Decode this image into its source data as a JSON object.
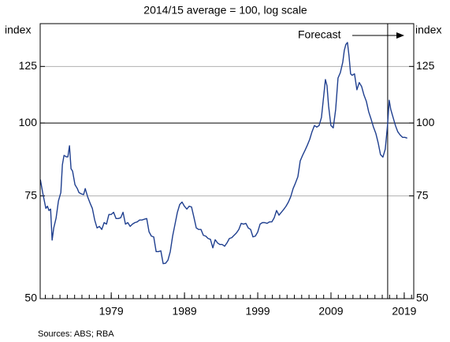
{
  "chart_data": {
    "type": "line",
    "subtitle": "2014/15 average = 100, log scale",
    "y_label": "index",
    "source": "Sources: ABS; RBA",
    "annotation": "Forecast",
    "forecast_start": 2016.74,
    "log_scale": true,
    "xlim": [
      1969.3,
      2020.3
    ],
    "ylim": [
      50,
      148
    ],
    "xticks": [
      1979,
      1989,
      1999,
      2009,
      2019
    ],
    "yticks": [
      50,
      75,
      100,
      125
    ],
    "reference_line": 100,
    "grid": true,
    "series": [
      {
        "name": "index",
        "color": "#1f3f8f",
        "x": [
          1969.32,
          1969.64,
          1970.07,
          1970.29,
          1970.5,
          1970.72,
          1970.93,
          1971.15,
          1971.47,
          1971.79,
          1972.12,
          1972.33,
          1972.55,
          1972.87,
          1973.08,
          1973.3,
          1973.51,
          1973.72,
          1974.05,
          1974.37,
          1974.59,
          1974.91,
          1975.23,
          1975.45,
          1975.77,
          1976.09,
          1976.42,
          1976.74,
          1977.06,
          1977.38,
          1977.71,
          1978.03,
          1978.35,
          1978.68,
          1979.0,
          1979.32,
          1979.65,
          1979.97,
          1980.29,
          1980.61,
          1980.94,
          1981.26,
          1981.58,
          1981.9,
          1982.23,
          1982.55,
          1982.87,
          1983.19,
          1983.52,
          1983.84,
          1984.16,
          1984.48,
          1984.8,
          1985.13,
          1985.45,
          1985.77,
          1986.09,
          1986.42,
          1986.74,
          1987.06,
          1987.38,
          1987.71,
          1988.03,
          1988.35,
          1988.67,
          1988.99,
          1989.32,
          1989.64,
          1989.96,
          1990.28,
          1990.61,
          1990.93,
          1991.25,
          1991.58,
          1991.9,
          1992.22,
          1992.54,
          1992.87,
          1993.19,
          1993.51,
          1993.84,
          1994.16,
          1994.48,
          1994.8,
          1995.13,
          1995.45,
          1995.77,
          1996.09,
          1996.42,
          1996.74,
          1997.06,
          1997.38,
          1997.7,
          1998.03,
          1998.35,
          1998.67,
          1998.99,
          1999.32,
          1999.64,
          1999.96,
          2000.28,
          2000.61,
          2000.93,
          2001.25,
          2001.57,
          2001.9,
          2002.22,
          2002.54,
          2002.86,
          2003.19,
          2003.51,
          2003.83,
          2004.15,
          2004.48,
          2004.8,
          2005.12,
          2005.44,
          2005.77,
          2006.09,
          2006.41,
          2006.74,
          2007.06,
          2007.38,
          2007.7,
          2008.03,
          2008.24,
          2008.46,
          2008.67,
          2008.99,
          2009.31,
          2009.64,
          2009.96,
          2010.28,
          2010.61,
          2010.82,
          2011.03,
          2011.25,
          2011.46,
          2011.68,
          2011.89,
          2012.21,
          2012.54,
          2012.86,
          2013.18,
          2013.51,
          2013.83,
          2014.15,
          2014.47,
          2014.8,
          2015.12,
          2015.44,
          2015.76,
          2016.09,
          2016.41,
          2016.73,
          2016.95,
          2017.16,
          2017.48,
          2017.8,
          2018.12,
          2018.44,
          2018.77,
          2019.09,
          2019.41
        ],
        "values": [
          80,
          76,
          71.4,
          72,
          70.8,
          71.2,
          63,
          66.1,
          68.7,
          73.5,
          76,
          84.8,
          88,
          87.5,
          87.5,
          91.4,
          83.5,
          82.7,
          78.4,
          77.2,
          76,
          75.6,
          75.4,
          77.2,
          74.8,
          73,
          71.4,
          68.2,
          66.1,
          66.5,
          65.7,
          67.5,
          67.1,
          69.7,
          69.7,
          70.3,
          68.6,
          68.6,
          68.8,
          70.3,
          67.1,
          67.5,
          66.5,
          67.1,
          67.5,
          67.7,
          68.2,
          68.2,
          68.4,
          68.6,
          65.1,
          64,
          63.8,
          60.2,
          60.2,
          60.4,
          57.4,
          57.5,
          58.2,
          60.2,
          64,
          67.1,
          70.3,
          72.5,
          73.2,
          72,
          71.2,
          72,
          71.8,
          69,
          66.1,
          65.7,
          65.7,
          64.2,
          64,
          63.4,
          63.2,
          61.1,
          63.1,
          62.3,
          61.9,
          61.9,
          61.5,
          62.3,
          63.4,
          63.6,
          64.2,
          64.8,
          65.7,
          67.3,
          67.1,
          67.3,
          66.1,
          65.7,
          63.8,
          64,
          65,
          67.1,
          67.5,
          67.5,
          67.3,
          67.7,
          67.7,
          68.8,
          70.8,
          69.5,
          70.3,
          71.1,
          72,
          73.2,
          74.8,
          77.2,
          78.9,
          80.9,
          86.1,
          88,
          89.7,
          91.6,
          93.7,
          96.6,
          99,
          98.4,
          99,
          102.2,
          112,
          118.7,
          115.8,
          107,
          99,
          98.1,
          105.5,
          119.4,
          122,
          127.1,
          133.2,
          136.3,
          137.4,
          130.4,
          121.4,
          120.7,
          121.4,
          114,
          117.3,
          115.5,
          111.6,
          108.9,
          104.5,
          101.6,
          98.4,
          96,
          92.5,
          88.3,
          87.4,
          90.2,
          99.4,
          109.4,
          105.5,
          102.2,
          99,
          96.6,
          95.4,
          94.5,
          94.5,
          94.2
        ]
      }
    ]
  }
}
